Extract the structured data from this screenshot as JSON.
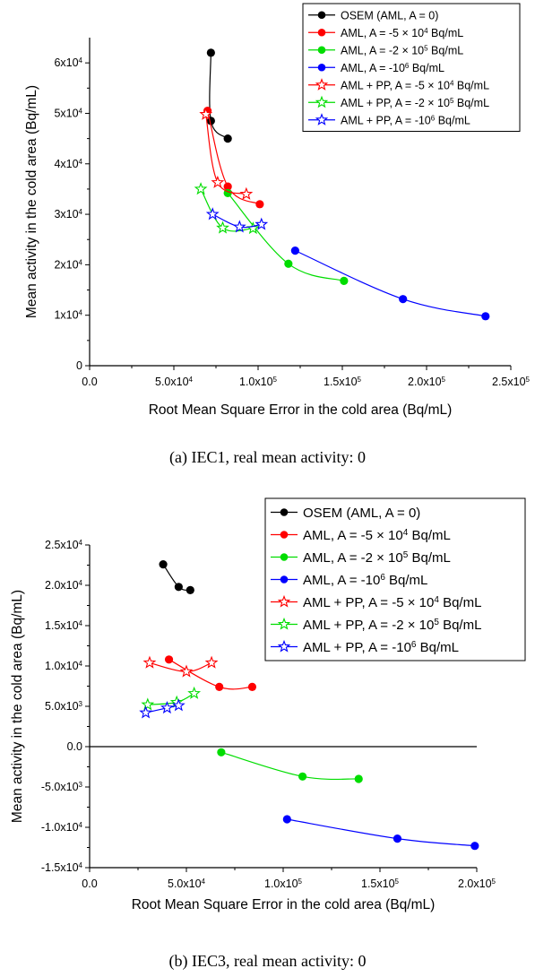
{
  "colors": {
    "osem": "#000000",
    "aml_5e4": "#ff0000",
    "aml_2e5": "#00dd00",
    "aml_1e6": "#0000ff",
    "axis": "#000000"
  },
  "charts": [
    {
      "caption": "(a) IEC1, real mean activity: 0",
      "chart_data": {
        "type": "line",
        "xlabel": "Root Mean Square Error in the cold area (Bq/mL)",
        "ylabel": "Mean activity in the cold area (Bq/mL)",
        "xlim": [
          0,
          250000
        ],
        "ylim": [
          0,
          65000
        ],
        "xticks": [
          0,
          50000,
          100000,
          150000,
          200000,
          250000
        ],
        "xtick_labels": [
          {
            "base": "0.0",
            "exp": ""
          },
          {
            "base": "5.0x10",
            "exp": "4"
          },
          {
            "base": "1.0x10",
            "exp": "5"
          },
          {
            "base": "1.5x10",
            "exp": "5"
          },
          {
            "base": "2.0x10",
            "exp": "5"
          },
          {
            "base": "2.5x10",
            "exp": "5"
          }
        ],
        "yticks": [
          0,
          10000,
          20000,
          30000,
          40000,
          50000,
          60000
        ],
        "ytick_labels": [
          {
            "base": "0",
            "exp": ""
          },
          {
            "base": "1x10",
            "exp": "4"
          },
          {
            "base": "2x10",
            "exp": "4"
          },
          {
            "base": "3x10",
            "exp": "4"
          },
          {
            "base": "4x10",
            "exp": "4"
          },
          {
            "base": "5x10",
            "exp": "4"
          },
          {
            "base": "6x10",
            "exp": "4"
          }
        ],
        "zero_line": false,
        "legend_position": "top-right",
        "series": [
          {
            "name_parts": [
              "OSEM (AML, A = 0)"
            ],
            "color": "#000000",
            "marker": "circle",
            "points": [
              [
                72000,
                62000
              ],
              [
                72000,
                48500
              ],
              [
                82000,
                45000
              ]
            ]
          },
          {
            "name_parts": [
              "AML, A = -5 × 10",
              "4",
              " Bq/mL"
            ],
            "color": "#ff0000",
            "marker": "circle",
            "points": [
              [
                70000,
                50500
              ],
              [
                82000,
                35500
              ],
              [
                101000,
                32000
              ]
            ]
          },
          {
            "name_parts": [
              "AML, A = -2 × 10",
              "5",
              " Bq/mL"
            ],
            "color": "#00dd00",
            "marker": "circle",
            "points": [
              [
                82000,
                34200
              ],
              [
                118000,
                20200
              ],
              [
                151000,
                16800
              ]
            ]
          },
          {
            "name_parts": [
              "AML, A = -10",
              "6",
              " Bq/mL"
            ],
            "color": "#0000ff",
            "marker": "circle",
            "points": [
              [
                122000,
                22800
              ],
              [
                186000,
                13200
              ],
              [
                235000,
                9800
              ]
            ]
          },
          {
            "name_parts": [
              "AML + PP, A = -5 × 10",
              "4",
              " Bq/mL"
            ],
            "color": "#ff0000",
            "marker": "star",
            "points": [
              [
                69000,
                49800
              ],
              [
                76000,
                36300
              ],
              [
                93000,
                34000
              ]
            ]
          },
          {
            "name_parts": [
              "AML + PP, A = -2 × 10",
              "5",
              " Bq/mL"
            ],
            "color": "#00dd00",
            "marker": "star",
            "points": [
              [
                66000,
                35000
              ],
              [
                79000,
                27300
              ],
              [
                97000,
                27200
              ]
            ]
          },
          {
            "name_parts": [
              "AML + PP, A = -10",
              "6",
              " Bq/mL"
            ],
            "color": "#0000ff",
            "marker": "star",
            "points": [
              [
                73000,
                30000
              ],
              [
                89000,
                27500
              ],
              [
                102000,
                28000
              ]
            ]
          }
        ]
      }
    },
    {
      "caption": "(b) IEC3, real mean activity: 0",
      "chart_data": {
        "type": "line",
        "xlabel": "Root Mean Square Error in the cold area (Bq/mL)",
        "ylabel": "Mean activity in the cold area (Bq/mL)",
        "xlim": [
          0,
          200000
        ],
        "ylim": [
          -15000,
          25000
        ],
        "xticks": [
          0,
          50000,
          100000,
          150000,
          200000
        ],
        "xtick_labels": [
          {
            "base": "0.0",
            "exp": ""
          },
          {
            "base": "5.0x10",
            "exp": "4"
          },
          {
            "base": "1.0x10",
            "exp": "5"
          },
          {
            "base": "1.5x10",
            "exp": "5"
          },
          {
            "base": "2.0x10",
            "exp": "5"
          }
        ],
        "yticks": [
          -15000,
          -10000,
          -5000,
          0,
          5000,
          10000,
          15000,
          20000,
          25000
        ],
        "ytick_labels": [
          {
            "base": "-1.5x10",
            "exp": "4"
          },
          {
            "base": "-1.0x10",
            "exp": "4"
          },
          {
            "base": "-5.0x10",
            "exp": "3"
          },
          {
            "base": "0.0",
            "exp": ""
          },
          {
            "base": "5.0x10",
            "exp": "3"
          },
          {
            "base": "1.0x10",
            "exp": "4"
          },
          {
            "base": "1.5x10",
            "exp": "4"
          },
          {
            "base": "2.0x10",
            "exp": "4"
          },
          {
            "base": "2.5x10",
            "exp": "4"
          }
        ],
        "zero_line": true,
        "legend_position": "top-right",
        "series": [
          {
            "name_parts": [
              "OSEM (AML, A = 0)"
            ],
            "color": "#000000",
            "marker": "circle",
            "points": [
              [
                38000,
                22600
              ],
              [
                46000,
                19800
              ],
              [
                52000,
                19400
              ]
            ]
          },
          {
            "name_parts": [
              "AML, A = -5 × 10",
              "4",
              " Bq/mL"
            ],
            "color": "#ff0000",
            "marker": "circle",
            "points": [
              [
                41000,
                10800
              ],
              [
                67000,
                7400
              ],
              [
                84000,
                7400
              ]
            ]
          },
          {
            "name_parts": [
              "AML, A = -2 × 10",
              "5",
              " Bq/mL"
            ],
            "color": "#00dd00",
            "marker": "circle",
            "points": [
              [
                68000,
                -700
              ],
              [
                110000,
                -3700
              ],
              [
                139000,
                -4000
              ]
            ]
          },
          {
            "name_parts": [
              "AML, A = -10",
              "6",
              " Bq/mL"
            ],
            "color": "#0000ff",
            "marker": "circle",
            "points": [
              [
                102000,
                -9000
              ],
              [
                159000,
                -11400
              ],
              [
                199000,
                -12300
              ]
            ]
          },
          {
            "name_parts": [
              "AML + PP, A = -5 × 10",
              "4",
              " Bq/mL"
            ],
            "color": "#ff0000",
            "marker": "star",
            "points": [
              [
                31000,
                10400
              ],
              [
                50000,
                9300
              ],
              [
                63000,
                10400
              ]
            ]
          },
          {
            "name_parts": [
              "AML + PP, A = -2 × 10",
              "5",
              " Bq/mL"
            ],
            "color": "#00dd00",
            "marker": "star",
            "points": [
              [
                30000,
                5200
              ],
              [
                45000,
                5500
              ],
              [
                54000,
                6600
              ]
            ]
          },
          {
            "name_parts": [
              "AML + PP, A = -10",
              "6",
              " Bq/mL"
            ],
            "color": "#0000ff",
            "marker": "star",
            "points": [
              [
                29000,
                4200
              ],
              [
                40000,
                4800
              ],
              [
                46000,
                5100
              ]
            ]
          }
        ]
      }
    }
  ]
}
